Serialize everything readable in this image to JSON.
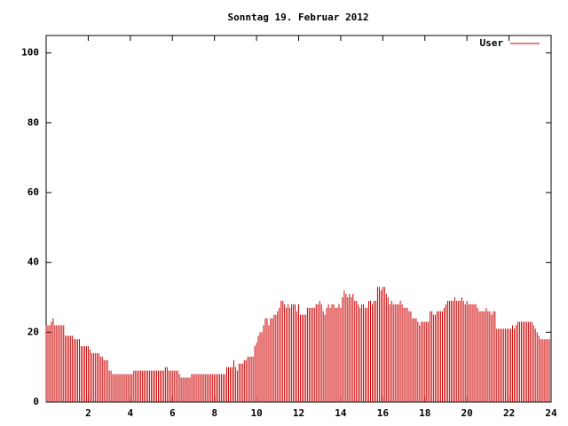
{
  "chart_data": {
    "type": "impulses",
    "title": "Sonntag 19. Februar 2012",
    "series": [
      {
        "name": "User",
        "color": "#cc0000",
        "x": [
          0,
          0.083,
          0.167,
          0.25,
          0.333,
          0.417,
          0.5,
          0.583,
          0.667,
          0.75,
          0.833,
          0.917,
          1,
          1.083,
          1.167,
          1.25,
          1.333,
          1.417,
          1.5,
          1.583,
          1.667,
          1.75,
          1.833,
          1.917,
          2,
          2.083,
          2.167,
          2.25,
          2.333,
          2.417,
          2.5,
          2.583,
          2.667,
          2.75,
          2.833,
          2.917,
          3,
          3.083,
          3.167,
          3.25,
          3.333,
          3.417,
          3.5,
          3.583,
          3.667,
          3.75,
          3.833,
          3.917,
          4,
          4.083,
          4.167,
          4.25,
          4.333,
          4.417,
          4.5,
          4.583,
          4.667,
          4.75,
          4.833,
          4.917,
          5,
          5.083,
          5.167,
          5.25,
          5.333,
          5.417,
          5.5,
          5.583,
          5.667,
          5.75,
          5.833,
          5.917,
          6,
          6.083,
          6.167,
          6.25,
          6.333,
          6.417,
          6.5,
          6.583,
          6.667,
          6.75,
          6.833,
          6.917,
          7,
          7.083,
          7.167,
          7.25,
          7.333,
          7.417,
          7.5,
          7.583,
          7.667,
          7.75,
          7.833,
          7.917,
          8,
          8.083,
          8.167,
          8.25,
          8.333,
          8.417,
          8.5,
          8.583,
          8.667,
          8.75,
          8.833,
          8.917,
          9,
          9.083,
          9.167,
          9.25,
          9.333,
          9.417,
          9.5,
          9.583,
          9.667,
          9.75,
          9.833,
          9.917,
          10,
          10.083,
          10.167,
          10.25,
          10.333,
          10.417,
          10.5,
          10.583,
          10.667,
          10.75,
          10.833,
          10.917,
          11,
          11.083,
          11.167,
          11.25,
          11.333,
          11.417,
          11.5,
          11.583,
          11.667,
          11.75,
          11.833,
          11.917,
          12,
          12.083,
          12.167,
          12.25,
          12.333,
          12.417,
          12.5,
          12.583,
          12.667,
          12.75,
          12.833,
          12.917,
          13,
          13.083,
          13.167,
          13.25,
          13.333,
          13.417,
          13.5,
          13.583,
          13.667,
          13.75,
          13.833,
          13.917,
          14,
          14.083,
          14.167,
          14.25,
          14.333,
          14.417,
          14.5,
          14.583,
          14.667,
          14.75,
          14.833,
          14.917,
          15,
          15.083,
          15.167,
          15.25,
          15.333,
          15.417,
          15.5,
          15.583,
          15.667,
          15.75,
          15.833,
          15.917,
          16,
          16.083,
          16.167,
          16.25,
          16.333,
          16.417,
          16.5,
          16.583,
          16.667,
          16.75,
          16.833,
          16.917,
          17,
          17.083,
          17.167,
          17.25,
          17.333,
          17.417,
          17.5,
          17.583,
          17.667,
          17.75,
          17.833,
          17.917,
          18,
          18.083,
          18.167,
          18.25,
          18.333,
          18.417,
          18.5,
          18.583,
          18.667,
          18.75,
          18.833,
          18.917,
          19,
          19.083,
          19.167,
          19.25,
          19.333,
          19.417,
          19.5,
          19.583,
          19.667,
          19.75,
          19.833,
          19.917,
          20,
          20.083,
          20.167,
          20.25,
          20.333,
          20.417,
          20.5,
          20.583,
          20.667,
          20.75,
          20.833,
          20.917,
          21,
          21.083,
          21.167,
          21.25,
          21.333,
          21.417,
          21.5,
          21.583,
          21.667,
          21.75,
          21.833,
          21.917,
          22,
          22.083,
          22.167,
          22.25,
          22.333,
          22.417,
          22.5,
          22.583,
          22.667,
          22.75,
          22.833,
          22.917,
          23,
          23.083,
          23.167,
          23.25,
          23.333,
          23.417,
          23.5,
          23.583,
          23.667,
          23.75,
          23.833,
          23.917
        ],
        "values": [
          22,
          22,
          22,
          23,
          24,
          22,
          22,
          22,
          22,
          22,
          22,
          19,
          19,
          19,
          19,
          19,
          18,
          18,
          18,
          18,
          16,
          16,
          16,
          16,
          16,
          15,
          14,
          14,
          14,
          14,
          14,
          13,
          13,
          12,
          12,
          12,
          9,
          9,
          8,
          8,
          8,
          8,
          8,
          8,
          8,
          8,
          8,
          8,
          8,
          8,
          9,
          9,
          9,
          9,
          9,
          9,
          9,
          9,
          9,
          9,
          9,
          9,
          9,
          9,
          9,
          9,
          9,
          9,
          10,
          10,
          9,
          9,
          9,
          9,
          9,
          9,
          8,
          7,
          7,
          7,
          7,
          7,
          7,
          8,
          8,
          8,
          8,
          8,
          8,
          8,
          8,
          8,
          8,
          8,
          8,
          8,
          8,
          8,
          8,
          8,
          8,
          8,
          8,
          10,
          10,
          10,
          10,
          12,
          10,
          9,
          11,
          11,
          11,
          12,
          12,
          13,
          13,
          13,
          13,
          16,
          17,
          19,
          20,
          20,
          22,
          24,
          24,
          22,
          24,
          24,
          25,
          25,
          26,
          27,
          29,
          29,
          28,
          27,
          28,
          27,
          28,
          28,
          28,
          26,
          28,
          25,
          25,
          25,
          25,
          27,
          27,
          27,
          27,
          27,
          28,
          28,
          29,
          28,
          26,
          25,
          27,
          28,
          27,
          28,
          28,
          27,
          27,
          28,
          27,
          30,
          32,
          31,
          30,
          31,
          30,
          31,
          29,
          29,
          28,
          27,
          28,
          28,
          27,
          27,
          29,
          29,
          28,
          29,
          29,
          33,
          33,
          32,
          33,
          33,
          31,
          30,
          28,
          29,
          28,
          28,
          28,
          28,
          29,
          28,
          27,
          27,
          27,
          26,
          26,
          24,
          24,
          24,
          23,
          22,
          23,
          23,
          23,
          23,
          23,
          26,
          26,
          25,
          25,
          26,
          26,
          26,
          26,
          27,
          28,
          29,
          29,
          29,
          29,
          30,
          29,
          29,
          29,
          30,
          29,
          28,
          29,
          28,
          28,
          28,
          28,
          28,
          27,
          26,
          26,
          26,
          26,
          27,
          26,
          26,
          25,
          26,
          26,
          21,
          21,
          21,
          21,
          21,
          21,
          21,
          21,
          21,
          22,
          21,
          22,
          23,
          23,
          23,
          23,
          23,
          23,
          23,
          23,
          23,
          22,
          21,
          20,
          19,
          18,
          18,
          18,
          18,
          18,
          18
        ]
      }
    ],
    "xlim": [
      0,
      24
    ],
    "xticks": [
      2,
      4,
      6,
      8,
      10,
      12,
      14,
      16,
      18,
      20,
      22,
      24
    ],
    "ylim": [
      0,
      105
    ],
    "yticks": [
      0,
      20,
      40,
      60,
      80,
      100
    ],
    "legend": "top-right",
    "grid": false
  }
}
